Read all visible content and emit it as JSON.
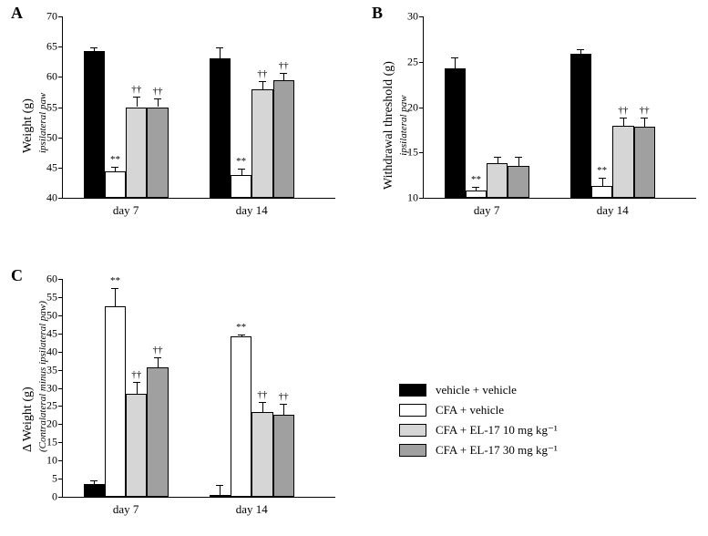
{
  "colors": {
    "series": [
      "#000000",
      "#ffffff",
      "#d6d6d6",
      "#a0a0a0"
    ],
    "axis": "#000000",
    "background": "#ffffff"
  },
  "legend": {
    "items": [
      {
        "label": "vehicle + vehicle",
        "color": "#000000"
      },
      {
        "label": "CFA + vehicle",
        "color": "#ffffff"
      },
      {
        "label": "CFA + EL-17 10 mg kg⁻¹",
        "color": "#d6d6d6"
      },
      {
        "label": "CFA + EL-17 30 mg kg⁻¹",
        "color": "#a0a0a0"
      }
    ],
    "fontsize": 13
  },
  "panels": {
    "A": {
      "label": "A",
      "ylabel": "Weight (g)",
      "ylabel_sub": "ipsilateral paw",
      "ylim": [
        40,
        70
      ],
      "ytick_step": 5,
      "categories": [
        "day 7",
        "day 14"
      ],
      "bar_width": 0.18,
      "group_gap": 0.35,
      "series": [
        {
          "values": [
            64.3,
            63.1
          ],
          "errors": [
            0.6,
            1.8
          ],
          "color": "#000000",
          "sig": [
            "",
            ""
          ]
        },
        {
          "values": [
            44.3,
            43.7
          ],
          "errors": [
            0.8,
            1.1
          ],
          "color": "#ffffff",
          "sig": [
            "**",
            "**"
          ]
        },
        {
          "values": [
            55.0,
            58.0
          ],
          "errors": [
            1.7,
            1.3
          ],
          "color": "#d6d6d6",
          "sig": [
            "††",
            "††"
          ]
        },
        {
          "values": [
            55.0,
            59.5
          ],
          "errors": [
            1.5,
            1.2
          ],
          "color": "#a0a0a0",
          "sig": [
            "††",
            "††"
          ]
        }
      ]
    },
    "B": {
      "label": "B",
      "ylabel": "Withdrawal threshold (g)",
      "ylabel_sub": "ipsilateral paw",
      "ylim": [
        10,
        30
      ],
      "ytick_step": 5,
      "categories": [
        "day 7",
        "day 14"
      ],
      "bar_width": 0.18,
      "group_gap": 0.35,
      "series": [
        {
          "values": [
            24.3,
            25.9
          ],
          "errors": [
            1.2,
            0.5
          ],
          "color": "#000000",
          "sig": [
            "",
            ""
          ]
        },
        {
          "values": [
            10.8,
            11.3
          ],
          "errors": [
            0.4,
            0.9
          ],
          "color": "#ffffff",
          "sig": [
            "**",
            "**"
          ]
        },
        {
          "values": [
            13.8,
            17.9
          ],
          "errors": [
            0.7,
            0.9
          ],
          "color": "#d6d6d6",
          "sig": [
            "",
            "††"
          ]
        },
        {
          "values": [
            13.5,
            17.8
          ],
          "errors": [
            1.0,
            1.0
          ],
          "color": "#a0a0a0",
          "sig": [
            "",
            "††"
          ]
        }
      ]
    },
    "C": {
      "label": "C",
      "ylabel": "Δ Weight (g)",
      "ylabel_sub": "(Contralateral minus ipsilateral paw)",
      "ylim": [
        0,
        60
      ],
      "ytick_step": 5,
      "categories": [
        "day 7",
        "day 14"
      ],
      "bar_width": 0.18,
      "group_gap": 0.35,
      "series": [
        {
          "values": [
            3.5,
            0.6
          ],
          "errors": [
            1.1,
            2.7
          ],
          "color": "#000000",
          "sig": [
            "",
            ""
          ]
        },
        {
          "values": [
            52.4,
            44.1
          ],
          "errors": [
            5.0,
            0.7
          ],
          "color": "#ffffff",
          "sig": [
            "**",
            "**"
          ]
        },
        {
          "values": [
            28.3,
            23.4
          ],
          "errors": [
            3.3,
            2.7
          ],
          "color": "#d6d6d6",
          "sig": [
            "††",
            "††"
          ]
        },
        {
          "values": [
            35.6,
            22.7
          ],
          "errors": [
            2.8,
            3.0
          ],
          "color": "#a0a0a0",
          "sig": [
            "††",
            "††"
          ]
        }
      ]
    }
  },
  "layout": {
    "panel_label_fontsize": 18,
    "tick_fontsize": 12,
    "ylabel_fontsize": 14,
    "sig_fontsize": 11,
    "xcat_fontsize": 13
  }
}
